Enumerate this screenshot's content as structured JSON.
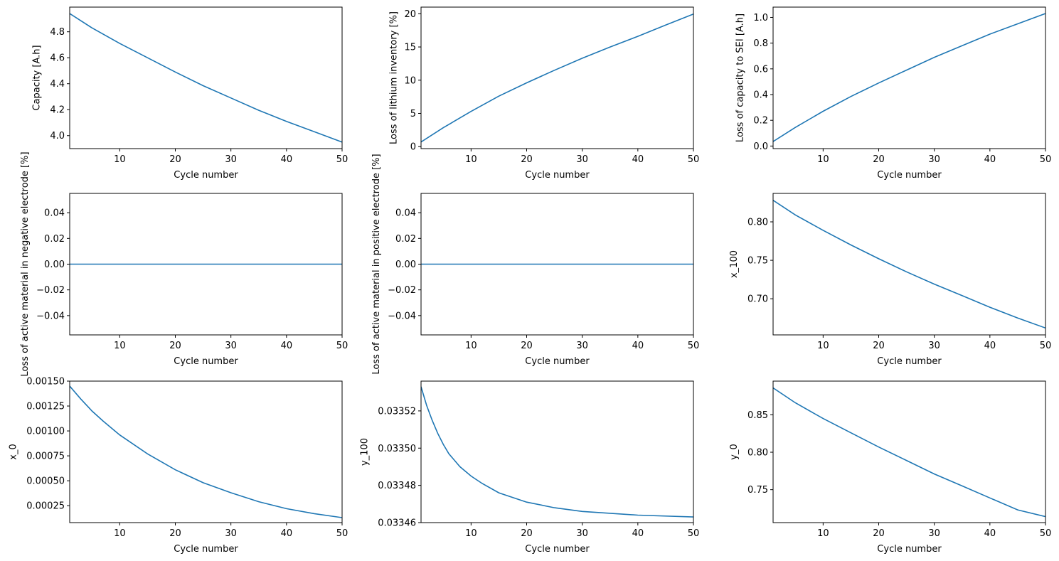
{
  "line_color": "#1f77b4",
  "chart_data": [
    {
      "type": "line",
      "xlabel": "Cycle number",
      "ylabel": "Capacity [A.h]",
      "xlim": [
        1,
        50
      ],
      "ylim": [
        3.9,
        4.99
      ],
      "xticks": [
        {
          "v": 10,
          "label": "10"
        },
        {
          "v": 20,
          "label": "20"
        },
        {
          "v": 30,
          "label": "30"
        },
        {
          "v": 40,
          "label": "40"
        },
        {
          "v": 50,
          "label": "50"
        }
      ],
      "yticks": [
        {
          "v": 4.0,
          "label": "4.0"
        },
        {
          "v": 4.2,
          "label": "4.2"
        },
        {
          "v": 4.4,
          "label": "4.4"
        },
        {
          "v": 4.6,
          "label": "4.6"
        },
        {
          "v": 4.8,
          "label": "4.8"
        }
      ],
      "x": [
        1,
        5,
        10,
        15,
        20,
        25,
        30,
        35,
        40,
        45,
        50
      ],
      "y": [
        4.94,
        4.83,
        4.71,
        4.6,
        4.49,
        4.385,
        4.29,
        4.195,
        4.11,
        4.03,
        3.95
      ]
    },
    {
      "type": "line",
      "xlabel": "Cycle number",
      "ylabel": "Loss of lithium inventory [%]",
      "xlim": [
        1,
        50
      ],
      "ylim": [
        -0.3,
        21.0
      ],
      "xticks": [
        {
          "v": 10,
          "label": "10"
        },
        {
          "v": 20,
          "label": "20"
        },
        {
          "v": 30,
          "label": "30"
        },
        {
          "v": 40,
          "label": "40"
        },
        {
          "v": 50,
          "label": "50"
        }
      ],
      "yticks": [
        {
          "v": 0,
          "label": "0"
        },
        {
          "v": 5,
          "label": "5"
        },
        {
          "v": 10,
          "label": "10"
        },
        {
          "v": 15,
          "label": "15"
        },
        {
          "v": 20,
          "label": "20"
        }
      ],
      "x": [
        1,
        5,
        10,
        15,
        20,
        25,
        30,
        35,
        40,
        45,
        50
      ],
      "y": [
        0.7,
        2.85,
        5.3,
        7.6,
        9.6,
        11.5,
        13.3,
        15.0,
        16.6,
        18.3,
        19.95
      ]
    },
    {
      "type": "line",
      "xlabel": "Cycle number",
      "ylabel": "Loss of capacity to SEI [A.h]",
      "xlim": [
        1,
        50
      ],
      "ylim": [
        -0.02,
        1.08
      ],
      "xticks": [
        {
          "v": 10,
          "label": "10"
        },
        {
          "v": 20,
          "label": "20"
        },
        {
          "v": 30,
          "label": "30"
        },
        {
          "v": 40,
          "label": "40"
        },
        {
          "v": 50,
          "label": "50"
        }
      ],
      "yticks": [
        {
          "v": 0.0,
          "label": "0.0"
        },
        {
          "v": 0.2,
          "label": "0.2"
        },
        {
          "v": 0.4,
          "label": "0.4"
        },
        {
          "v": 0.6,
          "label": "0.6"
        },
        {
          "v": 0.8,
          "label": "0.8"
        },
        {
          "v": 1.0,
          "label": "1.0"
        }
      ],
      "x": [
        1,
        5,
        10,
        15,
        20,
        25,
        30,
        35,
        40,
        45,
        50
      ],
      "y": [
        0.035,
        0.145,
        0.27,
        0.385,
        0.49,
        0.59,
        0.69,
        0.78,
        0.87,
        0.95,
        1.03
      ]
    },
    {
      "type": "line",
      "xlabel": "Cycle number",
      "ylabel": "Loss of active material in negative electrode [%]",
      "xlim": [
        1,
        50
      ],
      "ylim": [
        -0.055,
        0.055
      ],
      "xticks": [
        {
          "v": 10,
          "label": "10"
        },
        {
          "v": 20,
          "label": "20"
        },
        {
          "v": 30,
          "label": "30"
        },
        {
          "v": 40,
          "label": "40"
        },
        {
          "v": 50,
          "label": "50"
        }
      ],
      "yticks": [
        {
          "v": -0.04,
          "label": "−0.04"
        },
        {
          "v": -0.02,
          "label": "−0.02"
        },
        {
          "v": 0.0,
          "label": "0.00"
        },
        {
          "v": 0.02,
          "label": "0.02"
        },
        {
          "v": 0.04,
          "label": "0.04"
        }
      ],
      "x": [
        1,
        50
      ],
      "y": [
        0,
        0
      ]
    },
    {
      "type": "line",
      "xlabel": "Cycle number",
      "ylabel": "Loss of active material in positive electrode [%]",
      "xlim": [
        1,
        50
      ],
      "ylim": [
        -0.055,
        0.055
      ],
      "xticks": [
        {
          "v": 10,
          "label": "10"
        },
        {
          "v": 20,
          "label": "20"
        },
        {
          "v": 30,
          "label": "30"
        },
        {
          "v": 40,
          "label": "40"
        },
        {
          "v": 50,
          "label": "50"
        }
      ],
      "yticks": [
        {
          "v": -0.04,
          "label": "−0.04"
        },
        {
          "v": -0.02,
          "label": "−0.02"
        },
        {
          "v": 0.0,
          "label": "0.00"
        },
        {
          "v": 0.02,
          "label": "0.02"
        },
        {
          "v": 0.04,
          "label": "0.04"
        }
      ],
      "x": [
        1,
        50
      ],
      "y": [
        0,
        0
      ]
    },
    {
      "type": "line",
      "xlabel": "Cycle number",
      "ylabel": "x_100",
      "xlim": [
        1,
        50
      ],
      "ylim": [
        0.653,
        0.837
      ],
      "xticks": [
        {
          "v": 10,
          "label": "10"
        },
        {
          "v": 20,
          "label": "20"
        },
        {
          "v": 30,
          "label": "30"
        },
        {
          "v": 40,
          "label": "40"
        },
        {
          "v": 50,
          "label": "50"
        }
      ],
      "yticks": [
        {
          "v": 0.7,
          "label": "0.70"
        },
        {
          "v": 0.75,
          "label": "0.75"
        },
        {
          "v": 0.8,
          "label": "0.80"
        }
      ],
      "x": [
        1,
        5,
        10,
        15,
        20,
        25,
        30,
        35,
        40,
        45,
        50
      ],
      "y": [
        0.828,
        0.809,
        0.789,
        0.77,
        0.752,
        0.735,
        0.719,
        0.704,
        0.689,
        0.675,
        0.662
      ]
    },
    {
      "type": "line",
      "xlabel": "Cycle number",
      "ylabel": "x_0",
      "xlim": [
        1,
        50
      ],
      "ylim": [
        8e-05,
        0.0015
      ],
      "xticks": [
        {
          "v": 10,
          "label": "10"
        },
        {
          "v": 20,
          "label": "20"
        },
        {
          "v": 30,
          "label": "30"
        },
        {
          "v": 40,
          "label": "40"
        },
        {
          "v": 50,
          "label": "50"
        }
      ],
      "yticks": [
        {
          "v": 0.00025,
          "label": "0.00025"
        },
        {
          "v": 0.0005,
          "label": "0.00050"
        },
        {
          "v": 0.00075,
          "label": "0.00075"
        },
        {
          "v": 0.001,
          "label": "0.00100"
        },
        {
          "v": 0.00125,
          "label": "0.00125"
        },
        {
          "v": 0.0015,
          "label": "0.00150"
        }
      ],
      "x": [
        1,
        3,
        5,
        7,
        10,
        15,
        20,
        25,
        30,
        35,
        40,
        45,
        50
      ],
      "y": [
        0.00145,
        0.00132,
        0.0012,
        0.0011,
        0.00096,
        0.00077,
        0.00061,
        0.00048,
        0.00038,
        0.00029,
        0.00022,
        0.00017,
        0.00013
      ]
    },
    {
      "type": "line",
      "xlabel": "Cycle number",
      "ylabel": "y_100",
      "xlim": [
        1,
        50
      ],
      "ylim": [
        0.03346,
        0.033536
      ],
      "xticks": [
        {
          "v": 10,
          "label": "10"
        },
        {
          "v": 20,
          "label": "20"
        },
        {
          "v": 30,
          "label": "30"
        },
        {
          "v": 40,
          "label": "40"
        },
        {
          "v": 50,
          "label": "50"
        }
      ],
      "yticks": [
        {
          "v": 0.03346,
          "label": "0.03346"
        },
        {
          "v": 0.03348,
          "label": "0.03348"
        },
        {
          "v": 0.0335,
          "label": "0.03350"
        },
        {
          "v": 0.03352,
          "label": "0.03352"
        }
      ],
      "x": [
        1,
        2,
        3,
        4,
        5,
        6,
        8,
        10,
        12,
        15,
        20,
        25,
        30,
        40,
        50
      ],
      "y": [
        0.033533,
        0.033523,
        0.033515,
        0.033508,
        0.033502,
        0.033497,
        0.03349,
        0.033485,
        0.033481,
        0.033476,
        0.033471,
        0.033468,
        0.033466,
        0.033464,
        0.033463
      ]
    },
    {
      "type": "line",
      "xlabel": "Cycle number",
      "ylabel": "y_0",
      "xlim": [
        1,
        50
      ],
      "ylim": [
        0.706,
        0.895
      ],
      "xticks": [
        {
          "v": 10,
          "label": "10"
        },
        {
          "v": 20,
          "label": "20"
        },
        {
          "v": 30,
          "label": "30"
        },
        {
          "v": 40,
          "label": "40"
        },
        {
          "v": 50,
          "label": "50"
        }
      ],
      "yticks": [
        {
          "v": 0.75,
          "label": "0.75"
        },
        {
          "v": 0.8,
          "label": "0.80"
        },
        {
          "v": 0.85,
          "label": "0.85"
        }
      ],
      "x": [
        1,
        5,
        10,
        15,
        20,
        25,
        30,
        35,
        40,
        45,
        50
      ],
      "y": [
        0.886,
        0.866,
        0.845,
        0.826,
        0.807,
        0.789,
        0.771,
        0.755,
        0.739,
        0.723,
        0.714
      ]
    }
  ]
}
